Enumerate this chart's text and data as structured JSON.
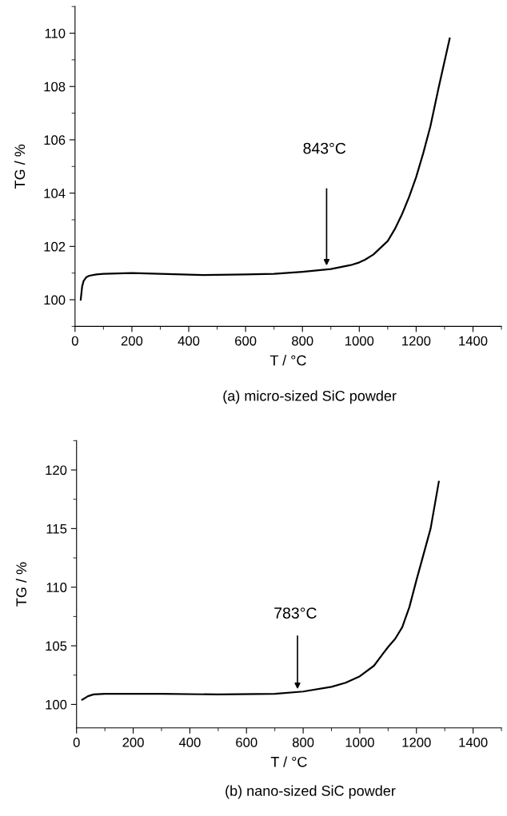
{
  "chart_data": [
    {
      "type": "line",
      "xlabel": "T / °C",
      "ylabel": "TG / %",
      "xlim": [
        0,
        1500
      ],
      "ylim": [
        99,
        111
      ],
      "xticks": [
        0,
        200,
        400,
        600,
        800,
        1000,
        1200,
        1400
      ],
      "yticks": [
        100,
        102,
        104,
        106,
        108,
        110
      ],
      "grid": false,
      "marker": "none",
      "line_style": "solid",
      "x": [
        20,
        25,
        30,
        40,
        50,
        75,
        100,
        200,
        300,
        450,
        600,
        700,
        800,
        900,
        970,
        1000,
        1020,
        1050,
        1070,
        1100,
        1125,
        1150,
        1175,
        1200,
        1225,
        1250,
        1280,
        1318
      ],
      "series": [
        {
          "color": "#000000",
          "values": [
            100.0,
            100.5,
            100.7,
            100.85,
            100.9,
            100.95,
            100.97,
            101.0,
            100.97,
            100.93,
            100.95,
            100.97,
            101.05,
            101.15,
            101.3,
            101.4,
            101.5,
            101.7,
            101.9,
            102.2,
            102.65,
            103.2,
            103.85,
            104.6,
            105.5,
            106.5,
            108.0,
            109.8
          ]
        }
      ],
      "annotations": [
        "(a) micro-sized SiC powder",
        "843°C"
      ]
    },
    {
      "type": "line",
      "xlabel": "T / °C",
      "ylabel": "TG / %",
      "xlim": [
        0,
        1500
      ],
      "ylim": [
        98,
        122.5
      ],
      "xticks": [
        0,
        200,
        400,
        600,
        800,
        1000,
        1200,
        1400
      ],
      "yticks": [
        100,
        105,
        110,
        115,
        120
      ],
      "grid": false,
      "marker": "none",
      "line_style": "solid",
      "x": [
        20,
        30,
        40,
        60,
        100,
        300,
        500,
        700,
        800,
        900,
        950,
        1000,
        1050,
        1084,
        1100,
        1125,
        1150,
        1175,
        1200,
        1225,
        1250,
        1279
      ],
      "series": [
        {
          "color": "#000000",
          "values": [
            100.4,
            100.55,
            100.7,
            100.85,
            100.9,
            100.9,
            100.85,
            100.9,
            101.1,
            101.5,
            101.85,
            102.4,
            103.3,
            104.4,
            104.9,
            105.6,
            106.6,
            108.3,
            110.6,
            112.8,
            115.0,
            119.0
          ]
        }
      ],
      "annotations": [
        "(b) nano-sized SiC powder",
        "783°C"
      ]
    }
  ]
}
